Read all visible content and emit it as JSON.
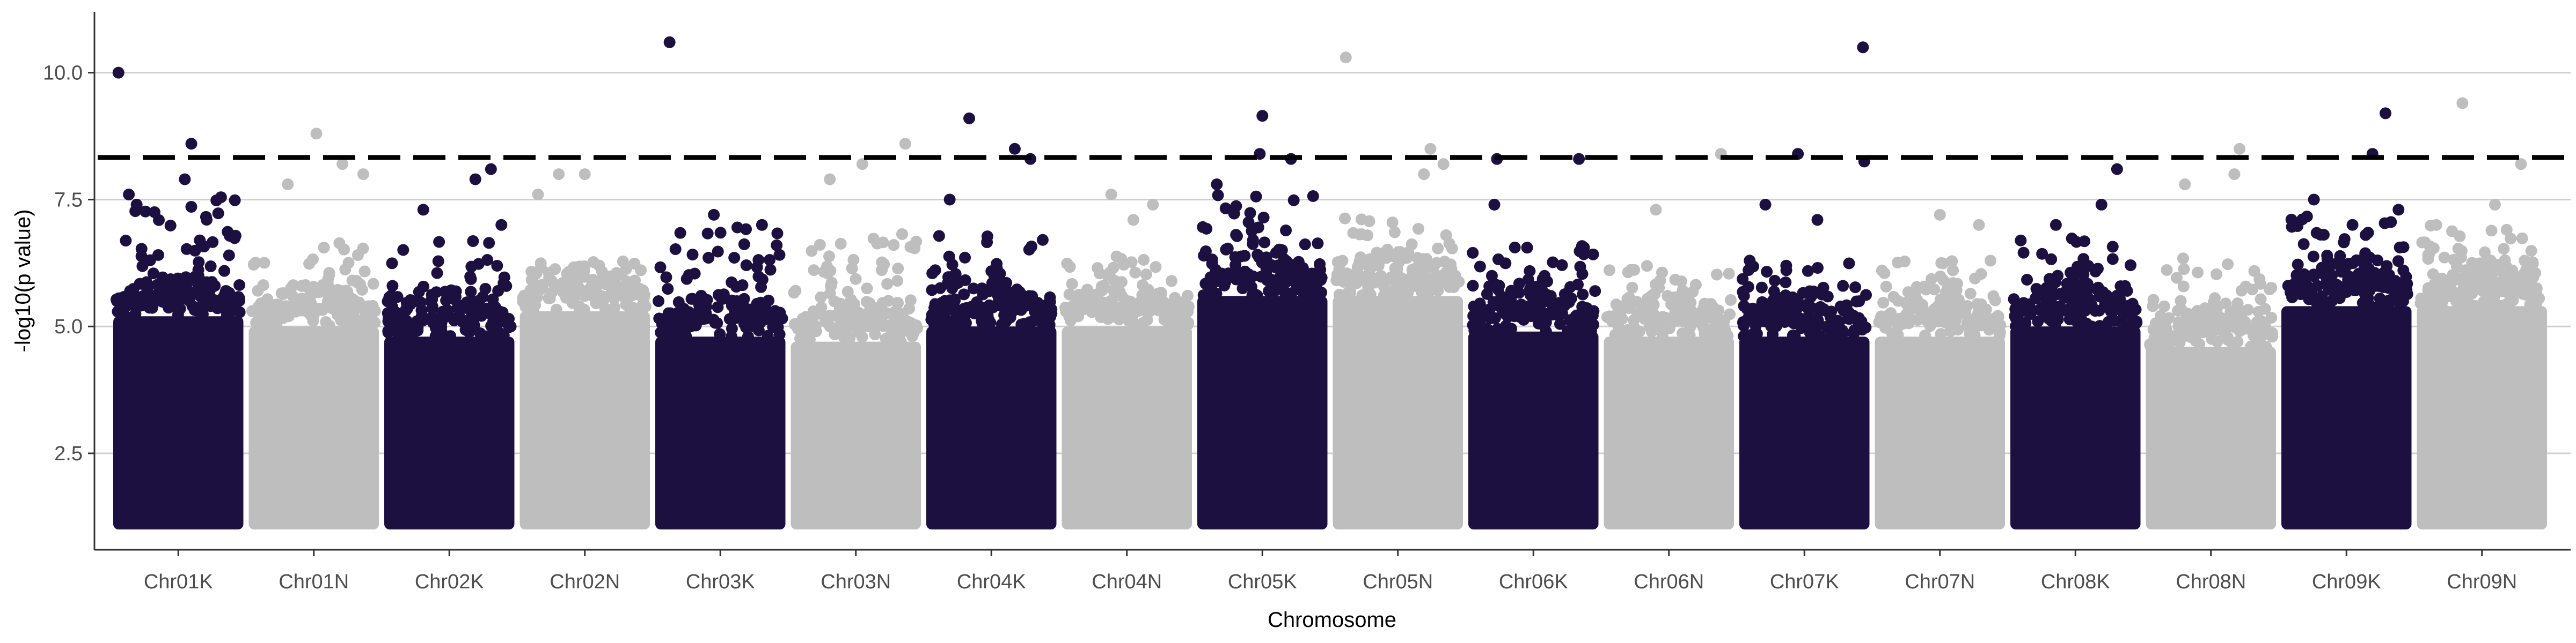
{
  "chart_data": {
    "type": "scatter",
    "subtype": "manhattan",
    "title": "",
    "xlabel": "Chromosome",
    "ylabel": "-log10(p value)",
    "ylim": [
      0.6,
      11.2
    ],
    "yticks": [
      2.5,
      5.0,
      7.5,
      10.0
    ],
    "ytick_labels": [
      "2.5",
      "5.0",
      "7.5",
      "10.0"
    ],
    "grid": "horizontal major lines",
    "legend": "none",
    "threshold": {
      "value": 8.33,
      "style": "dashed",
      "color": "#000000"
    },
    "colors": {
      "odd": "#1c1040",
      "even": "#bebebe"
    },
    "categories": [
      "Chr01K",
      "Chr01N",
      "Chr02K",
      "Chr02N",
      "Chr03K",
      "Chr03N",
      "Chr04K",
      "Chr04N",
      "Chr05K",
      "Chr05N",
      "Chr06K",
      "Chr06N",
      "Chr07K",
      "Chr07N",
      "Chr08K",
      "Chr08N",
      "Chr09K",
      "Chr09N"
    ],
    "chromosomes": [
      {
        "name": "Chr01K",
        "dense_top": 5.2,
        "max_scatter": 7.6,
        "peaks": [
          [
            0.04,
            10.0
          ],
          [
            0.6,
            8.6
          ],
          [
            0.55,
            7.9
          ],
          [
            0.18,
            7.4
          ],
          [
            0.12,
            7.6
          ]
        ]
      },
      {
        "name": "Chr01N",
        "dense_top": 5.0,
        "max_scatter": 6.7,
        "peaks": [
          [
            0.52,
            8.8
          ],
          [
            0.72,
            8.2
          ],
          [
            0.88,
            8.0
          ],
          [
            0.3,
            7.8
          ]
        ]
      },
      {
        "name": "Chr02K",
        "dense_top": 4.8,
        "max_scatter": 6.8,
        "peaks": [
          [
            0.3,
            7.3
          ],
          [
            0.82,
            8.1
          ],
          [
            0.7,
            7.9
          ],
          [
            0.9,
            7.0
          ]
        ]
      },
      {
        "name": "Chr02N",
        "dense_top": 5.3,
        "max_scatter": 6.3,
        "peaks": [
          [
            0.3,
            8.0
          ],
          [
            0.5,
            8.0
          ],
          [
            0.14,
            7.6
          ]
        ]
      },
      {
        "name": "Chr03K",
        "dense_top": 4.8,
        "max_scatter": 7.0,
        "peaks": [
          [
            0.11,
            10.6
          ],
          [
            0.45,
            7.2
          ],
          [
            0.82,
            7.0
          ]
        ]
      },
      {
        "name": "Chr03N",
        "dense_top": 4.7,
        "max_scatter": 7.0,
        "peaks": [
          [
            0.88,
            8.6
          ],
          [
            0.55,
            8.2
          ],
          [
            0.3,
            7.9
          ]
        ]
      },
      {
        "name": "Chr04K",
        "dense_top": 5.0,
        "max_scatter": 6.8,
        "peaks": [
          [
            0.33,
            9.1
          ],
          [
            0.68,
            8.5
          ],
          [
            0.8,
            8.3
          ],
          [
            0.18,
            7.5
          ]
        ]
      },
      {
        "name": "Chr04N",
        "dense_top": 5.0,
        "max_scatter": 6.4,
        "peaks": [
          [
            0.38,
            7.6
          ],
          [
            0.7,
            7.4
          ],
          [
            0.55,
            7.1
          ]
        ]
      },
      {
        "name": "Chr05K",
        "dense_top": 5.6,
        "max_scatter": 7.6,
        "peaks": [
          [
            0.5,
            9.15
          ],
          [
            0.48,
            8.4
          ],
          [
            0.72,
            8.3
          ],
          [
            0.15,
            7.8
          ]
        ]
      },
      {
        "name": "Chr05N",
        "dense_top": 5.6,
        "max_scatter": 7.2,
        "peaks": [
          [
            0.1,
            10.3
          ],
          [
            0.75,
            8.5
          ],
          [
            0.7,
            8.0
          ],
          [
            0.85,
            8.2
          ]
        ]
      },
      {
        "name": "Chr06K",
        "dense_top": 4.9,
        "max_scatter": 6.6,
        "peaks": [
          [
            0.22,
            8.3
          ],
          [
            0.85,
            8.3
          ],
          [
            0.2,
            7.4
          ]
        ]
      },
      {
        "name": "Chr06N",
        "dense_top": 4.8,
        "max_scatter": 6.2,
        "peaks": [
          [
            0.9,
            8.4
          ],
          [
            0.4,
            7.3
          ]
        ]
      },
      {
        "name": "Chr07K",
        "dense_top": 4.8,
        "max_scatter": 6.3,
        "peaks": [
          [
            0.95,
            10.5
          ],
          [
            0.45,
            8.4
          ],
          [
            0.96,
            8.25
          ],
          [
            0.2,
            7.4
          ],
          [
            0.6,
            7.1
          ]
        ]
      },
      {
        "name": "Chr07N",
        "dense_top": 4.8,
        "max_scatter": 6.3,
        "peaks": [
          [
            0.5,
            7.2
          ],
          [
            0.8,
            7.0
          ]
        ]
      },
      {
        "name": "Chr08K",
        "dense_top": 5.0,
        "max_scatter": 6.8,
        "peaks": [
          [
            0.82,
            8.1
          ],
          [
            0.7,
            7.4
          ],
          [
            0.35,
            7.0
          ]
        ]
      },
      {
        "name": "Chr08N",
        "dense_top": 4.6,
        "max_scatter": 6.4,
        "peaks": [
          [
            0.72,
            8.5
          ],
          [
            0.68,
            8.0
          ],
          [
            0.3,
            7.8
          ]
        ]
      },
      {
        "name": "Chr09K",
        "dense_top": 5.4,
        "max_scatter": 7.2,
        "peaks": [
          [
            0.8,
            9.2
          ],
          [
            0.7,
            8.4
          ],
          [
            0.25,
            7.5
          ],
          [
            0.9,
            7.3
          ]
        ]
      },
      {
        "name": "Chr09N",
        "dense_top": 5.4,
        "max_scatter": 7.0,
        "peaks": [
          [
            0.35,
            9.4
          ],
          [
            0.8,
            8.2
          ],
          [
            0.6,
            7.4
          ]
        ]
      }
    ]
  }
}
